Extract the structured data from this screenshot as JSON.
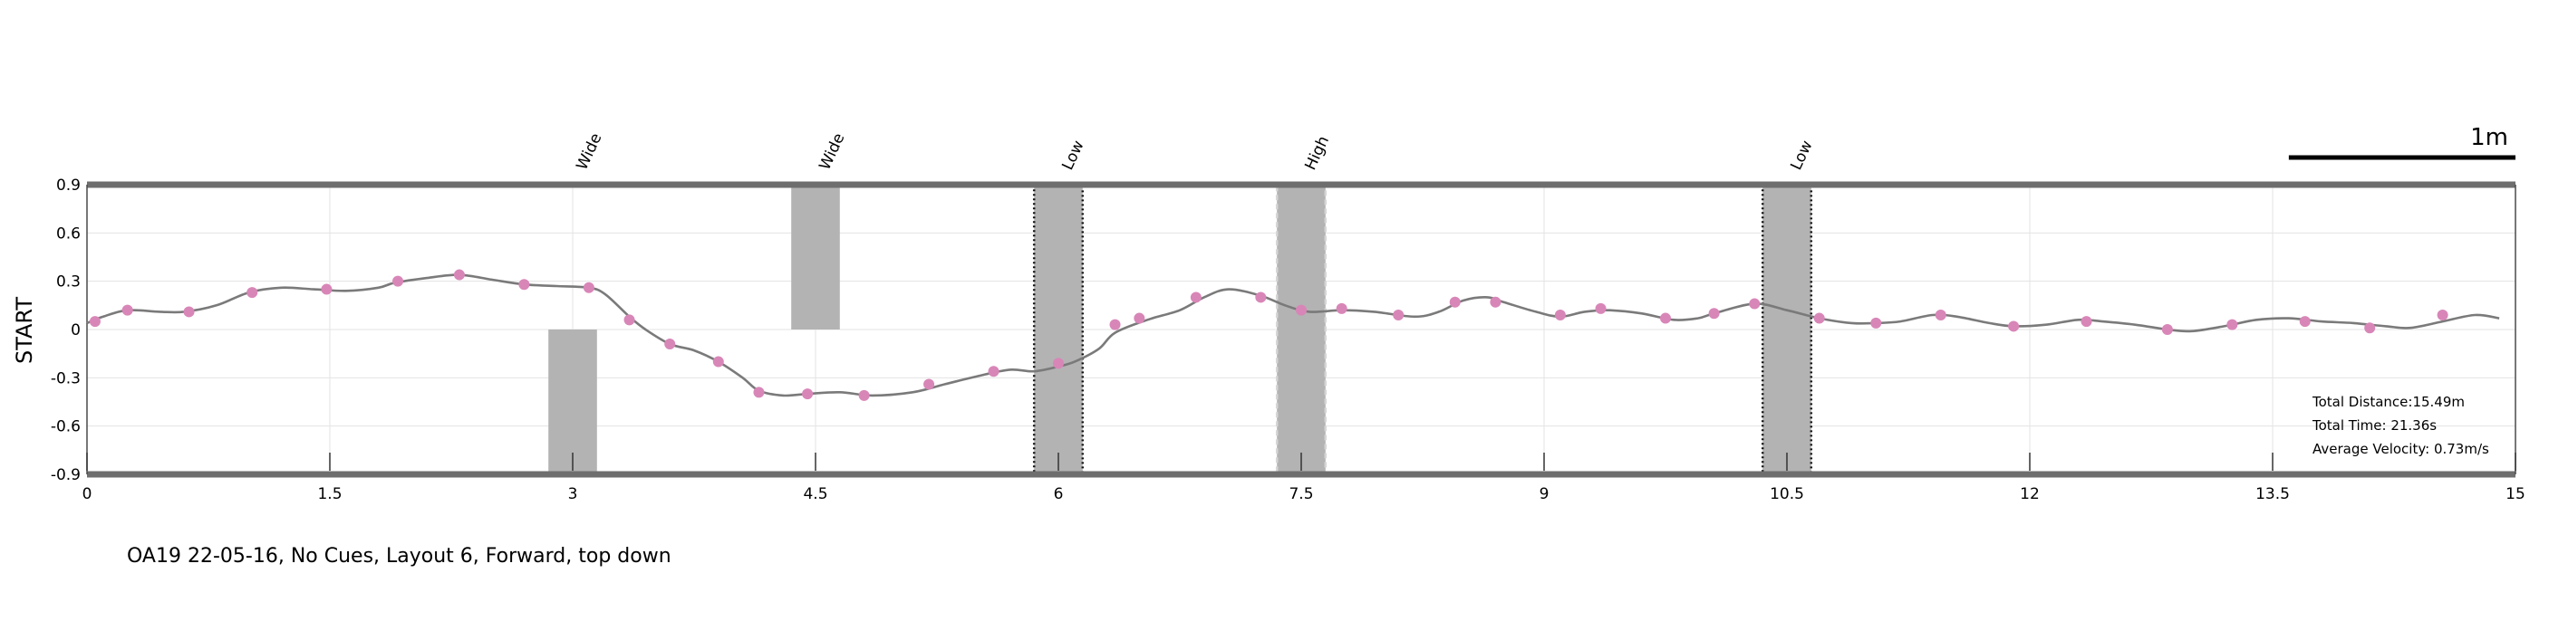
{
  "chart_data": {
    "type": "line",
    "title": "",
    "xlabel": "",
    "ylabel": "START",
    "xlim": [
      0,
      15
    ],
    "ylim": [
      -0.9,
      0.9
    ],
    "x_ticks": [
      "0",
      "1.5",
      "3",
      "4.5",
      "6",
      "7.5",
      "9",
      "10.5",
      "12",
      "13.5",
      "15"
    ],
    "y_ticks": [
      "0.9",
      "0.6",
      "0.3",
      "0",
      "-0.3",
      "-0.6",
      "-0.9"
    ],
    "grid": true,
    "line_color": "#7a7a7a",
    "marker_color": "#d886b8",
    "obstacle_color": "#b3b3b3",
    "trajectory": [
      [
        0.0,
        0.04
      ],
      [
        0.1,
        0.08
      ],
      [
        0.25,
        0.12
      ],
      [
        0.45,
        0.11
      ],
      [
        0.6,
        0.11
      ],
      [
        0.8,
        0.15
      ],
      [
        1.0,
        0.23
      ],
      [
        1.2,
        0.26
      ],
      [
        1.4,
        0.25
      ],
      [
        1.6,
        0.24
      ],
      [
        1.8,
        0.26
      ],
      [
        1.9,
        0.29
      ],
      [
        2.1,
        0.32
      ],
      [
        2.3,
        0.34
      ],
      [
        2.5,
        0.31
      ],
      [
        2.7,
        0.28
      ],
      [
        2.9,
        0.27
      ],
      [
        3.1,
        0.26
      ],
      [
        3.2,
        0.22
      ],
      [
        3.35,
        0.08
      ],
      [
        3.45,
        0.0
      ],
      [
        3.6,
        -0.09
      ],
      [
        3.75,
        -0.13
      ],
      [
        3.9,
        -0.2
      ],
      [
        4.05,
        -0.3
      ],
      [
        4.15,
        -0.38
      ],
      [
        4.3,
        -0.41
      ],
      [
        4.45,
        -0.4
      ],
      [
        4.65,
        -0.39
      ],
      [
        4.85,
        -0.41
      ],
      [
        5.1,
        -0.39
      ],
      [
        5.3,
        -0.34
      ],
      [
        5.5,
        -0.29
      ],
      [
        5.7,
        -0.25
      ],
      [
        5.85,
        -0.26
      ],
      [
        6.0,
        -0.23
      ],
      [
        6.1,
        -0.2
      ],
      [
        6.25,
        -0.12
      ],
      [
        6.35,
        -0.02
      ],
      [
        6.55,
        0.06
      ],
      [
        6.75,
        0.12
      ],
      [
        6.9,
        0.2
      ],
      [
        7.05,
        0.25
      ],
      [
        7.25,
        0.21
      ],
      [
        7.4,
        0.15
      ],
      [
        7.55,
        0.11
      ],
      [
        7.75,
        0.12
      ],
      [
        7.95,
        0.11
      ],
      [
        8.2,
        0.08
      ],
      [
        8.35,
        0.11
      ],
      [
        8.5,
        0.18
      ],
      [
        8.65,
        0.2
      ],
      [
        8.75,
        0.17
      ],
      [
        8.95,
        0.11
      ],
      [
        9.1,
        0.08
      ],
      [
        9.25,
        0.11
      ],
      [
        9.4,
        0.12
      ],
      [
        9.6,
        0.1
      ],
      [
        9.8,
        0.06
      ],
      [
        9.95,
        0.07
      ],
      [
        10.05,
        0.1
      ],
      [
        10.3,
        0.16
      ],
      [
        10.5,
        0.12
      ],
      [
        10.7,
        0.07
      ],
      [
        10.9,
        0.04
      ],
      [
        11.05,
        0.04
      ],
      [
        11.2,
        0.05
      ],
      [
        11.4,
        0.09
      ],
      [
        11.55,
        0.08
      ],
      [
        11.75,
        0.04
      ],
      [
        11.9,
        0.02
      ],
      [
        12.1,
        0.03
      ],
      [
        12.3,
        0.06
      ],
      [
        12.45,
        0.05
      ],
      [
        12.65,
        0.03
      ],
      [
        12.85,
        0.0
      ],
      [
        13.0,
        -0.01
      ],
      [
        13.2,
        0.02
      ],
      [
        13.4,
        0.06
      ],
      [
        13.6,
        0.07
      ],
      [
        13.8,
        0.05
      ],
      [
        14.0,
        0.04
      ],
      [
        14.2,
        0.02
      ],
      [
        14.35,
        0.01
      ],
      [
        14.55,
        0.05
      ],
      [
        14.75,
        0.09
      ],
      [
        14.9,
        0.07
      ]
    ],
    "markers": [
      [
        0.05,
        0.05
      ],
      [
        0.25,
        0.12
      ],
      [
        0.63,
        0.11
      ],
      [
        1.02,
        0.23
      ],
      [
        1.48,
        0.25
      ],
      [
        1.92,
        0.3
      ],
      [
        2.3,
        0.34
      ],
      [
        2.7,
        0.28
      ],
      [
        3.1,
        0.26
      ],
      [
        3.35,
        0.06
      ],
      [
        3.6,
        -0.09
      ],
      [
        3.9,
        -0.2
      ],
      [
        4.15,
        -0.39
      ],
      [
        4.45,
        -0.4
      ],
      [
        4.8,
        -0.41
      ],
      [
        5.2,
        -0.34
      ],
      [
        5.6,
        -0.26
      ],
      [
        6.0,
        -0.21
      ],
      [
        6.35,
        0.03
      ],
      [
        6.5,
        0.07
      ],
      [
        6.85,
        0.2
      ],
      [
        7.25,
        0.2
      ],
      [
        7.5,
        0.12
      ],
      [
        7.75,
        0.13
      ],
      [
        8.1,
        0.09
      ],
      [
        8.45,
        0.17
      ],
      [
        8.7,
        0.17
      ],
      [
        9.1,
        0.09
      ],
      [
        9.35,
        0.13
      ],
      [
        9.75,
        0.07
      ],
      [
        10.05,
        0.1
      ],
      [
        10.3,
        0.16
      ],
      [
        10.7,
        0.07
      ],
      [
        11.05,
        0.04
      ],
      [
        11.45,
        0.09
      ],
      [
        11.9,
        0.02
      ],
      [
        12.35,
        0.05
      ],
      [
        12.85,
        0.0
      ],
      [
        13.25,
        0.03
      ],
      [
        13.7,
        0.05
      ],
      [
        14.1,
        0.01
      ],
      [
        14.55,
        0.09
      ]
    ],
    "obstacles": [
      {
        "label": "Wide",
        "x_center": 3.0,
        "x0": 2.85,
        "x1": 3.15,
        "y0": -0.9,
        "y1": 0.0,
        "border": "none"
      },
      {
        "label": "Wide",
        "x_center": 4.5,
        "x0": 4.35,
        "x1": 4.65,
        "y0": 0.0,
        "y1": 0.9,
        "border": "none"
      },
      {
        "label": "Low",
        "x_center": 6.0,
        "x0": 5.85,
        "x1": 6.15,
        "y0": -0.9,
        "y1": 0.9,
        "border": "dotted-dark"
      },
      {
        "label": "High",
        "x_center": 7.5,
        "x0": 7.35,
        "x1": 7.65,
        "y0": -0.9,
        "y1": 0.9,
        "border": "dashed-light"
      },
      {
        "label": "Low",
        "x_center": 10.5,
        "x0": 10.35,
        "x1": 10.65,
        "y0": -0.9,
        "y1": 0.9,
        "border": "dotted-dark"
      }
    ],
    "stats": [
      "Total Distance:15.49m",
      "Total Time: 21.36s",
      "Average Velocity: 0.73m/s"
    ],
    "scale_bar_label": "1m",
    "scale_bar_length": 1.4,
    "caption": "OA19 22-05-16, No Cues, Layout 6, Forward, top down"
  }
}
